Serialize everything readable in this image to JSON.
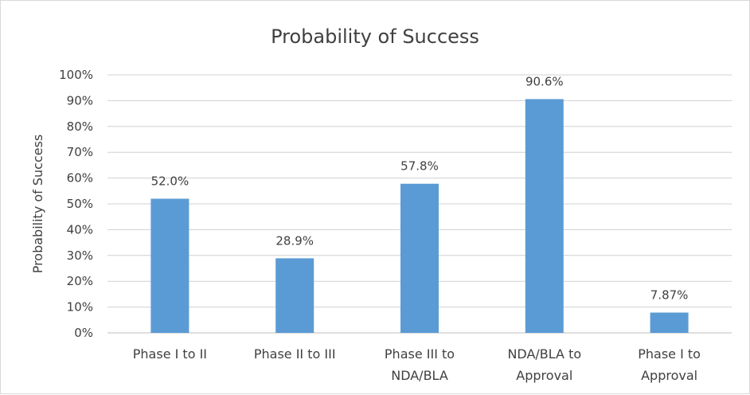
{
  "chart_data": {
    "type": "bar",
    "title": "Probability of Success",
    "xlabel": "",
    "ylabel": "Probability of Success",
    "ylim": [
      0,
      100
    ],
    "yticks": [
      "0%",
      "10%",
      "20%",
      "30%",
      "40%",
      "50%",
      "60%",
      "70%",
      "80%",
      "90%",
      "100%"
    ],
    "grid": true,
    "categories": [
      [
        "Phase I to II"
      ],
      [
        "Phase II to III"
      ],
      [
        "Phase III to",
        "NDA/BLA"
      ],
      [
        "NDA/BLA to",
        "Approval"
      ],
      [
        "Phase I to",
        "Approval"
      ]
    ],
    "values": [
      52.0,
      28.9,
      57.8,
      90.6,
      7.87
    ],
    "data_labels": [
      "52.0%",
      "28.9%",
      "57.8%",
      "90.6%",
      "7.87%"
    ],
    "bar_color": "#5b9bd5"
  }
}
